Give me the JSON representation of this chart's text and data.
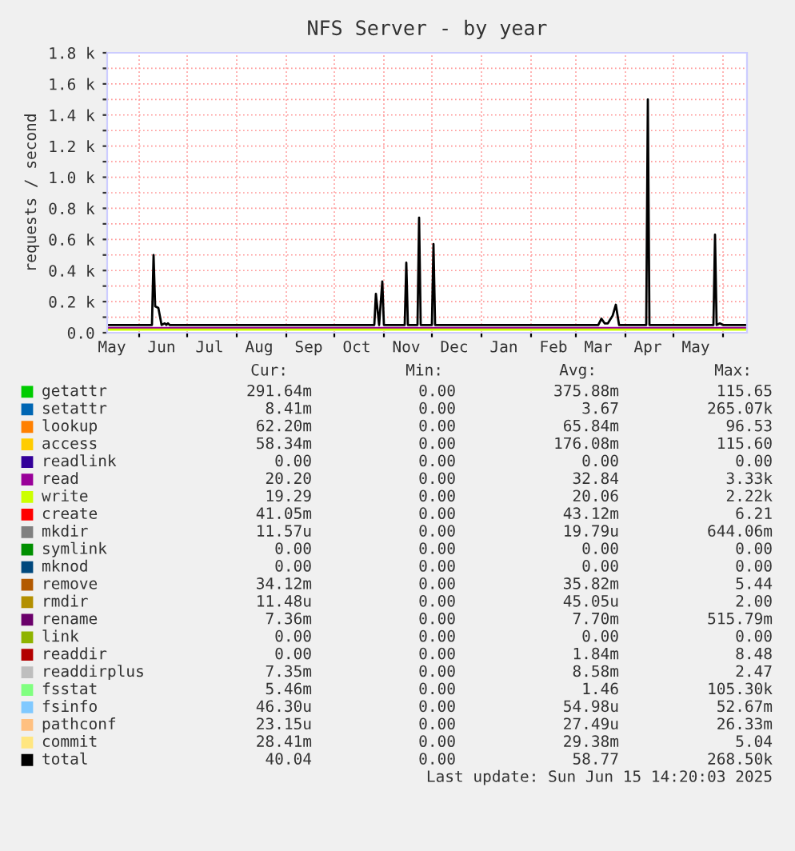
{
  "chart_data": {
    "type": "line",
    "title": "NFS Server - by year",
    "ylabel": "requests / second",
    "xlim": [
      "2024-05-12",
      "2025-06-16"
    ],
    "xticks": [
      {
        "value": "2024-05-15",
        "label": "May"
      },
      {
        "value": "2024-06-01",
        "label": null
      },
      {
        "value": "2024-06-15",
        "label": "Jun"
      },
      {
        "value": "2024-07-01",
        "label": null
      },
      {
        "value": "2024-07-15",
        "label": "Jul"
      },
      {
        "value": "2024-08-01",
        "label": null
      },
      {
        "value": "2024-08-15",
        "label": "Aug"
      },
      {
        "value": "2024-09-01",
        "label": null
      },
      {
        "value": "2024-09-15",
        "label": "Sep"
      },
      {
        "value": "2024-10-01",
        "label": null
      },
      {
        "value": "2024-10-15",
        "label": "Oct"
      },
      {
        "value": "2024-11-01",
        "label": null
      },
      {
        "value": "2024-11-15",
        "label": "Nov"
      },
      {
        "value": "2024-12-01",
        "label": null
      },
      {
        "value": "2024-12-15",
        "label": "Dec"
      },
      {
        "value": "2025-01-01",
        "label": null
      },
      {
        "value": "2025-01-15",
        "label": "Jan"
      },
      {
        "value": "2025-02-01",
        "label": null
      },
      {
        "value": "2025-02-15",
        "label": "Feb"
      },
      {
        "value": "2025-03-01",
        "label": null
      },
      {
        "value": "2025-03-15",
        "label": "Mar"
      },
      {
        "value": "2025-04-01",
        "label": null
      },
      {
        "value": "2025-04-15",
        "label": "Apr"
      },
      {
        "value": "2025-05-01",
        "label": null
      },
      {
        "value": "2025-05-15",
        "label": "May"
      },
      {
        "value": "2025-06-01",
        "label": null
      }
    ],
    "ylim": [
      0,
      1800
    ],
    "yticks": [
      {
        "value": 0,
        "label": "0.0"
      },
      {
        "value": 100,
        "label": null
      },
      {
        "value": 200,
        "label": "0.2 k"
      },
      {
        "value": 300,
        "label": null
      },
      {
        "value": 400,
        "label": "0.4 k"
      },
      {
        "value": 500,
        "label": null
      },
      {
        "value": 600,
        "label": "0.6 k"
      },
      {
        "value": 700,
        "label": null
      },
      {
        "value": 800,
        "label": "0.8 k"
      },
      {
        "value": 900,
        "label": null
      },
      {
        "value": 1000,
        "label": "1.0 k"
      },
      {
        "value": 1100,
        "label": null
      },
      {
        "value": 1200,
        "label": "1.2 k"
      },
      {
        "value": 1300,
        "label": null
      },
      {
        "value": 1400,
        "label": "1.4 k"
      },
      {
        "value": 1500,
        "label": null
      },
      {
        "value": 1600,
        "label": "1.6 k"
      },
      {
        "value": 1700,
        "label": null
      },
      {
        "value": 1800,
        "label": "1.8 k"
      }
    ],
    "grid": true,
    "legend": "bottom",
    "series": [
      {
        "name": "getattr",
        "color": "#00cc00",
        "values": [
          null,
          null
        ]
      },
      {
        "name": "setattr",
        "color": "#0066b3",
        "values": [
          null,
          null
        ]
      },
      {
        "name": "lookup",
        "color": "#ff8000",
        "values": [
          null,
          null
        ]
      },
      {
        "name": "access",
        "color": "#ffcc00",
        "values": [
          null,
          null
        ]
      },
      {
        "name": "readlink",
        "color": "#330099",
        "values": [
          null,
          null
        ]
      },
      {
        "name": "read",
        "color": "#990099",
        "x": [
          "2024-05-12",
          "2025-06-16"
        ],
        "values": [
          30,
          30
        ]
      },
      {
        "name": "write",
        "color": "#ccff00",
        "x": [
          "2024-05-12",
          "2025-06-16"
        ],
        "values": [
          20,
          20
        ]
      },
      {
        "name": "create",
        "color": "#ff0000",
        "values": [
          null,
          null
        ]
      },
      {
        "name": "mkdir",
        "color": "#808080",
        "values": [
          null,
          null
        ]
      },
      {
        "name": "symlink",
        "color": "#008f00",
        "values": [
          null,
          null
        ]
      },
      {
        "name": "mknod",
        "color": "#00487d",
        "values": [
          null,
          null
        ]
      },
      {
        "name": "remove",
        "color": "#b35a00",
        "values": [
          null,
          null
        ]
      },
      {
        "name": "rmdir",
        "color": "#b38f00",
        "values": [
          null,
          null
        ]
      },
      {
        "name": "rename",
        "color": "#6b006b",
        "values": [
          null,
          null
        ]
      },
      {
        "name": "link",
        "color": "#8fb300",
        "values": [
          null,
          null
        ]
      },
      {
        "name": "readdir",
        "color": "#b30000",
        "values": [
          null,
          null
        ]
      },
      {
        "name": "readdirplus",
        "color": "#bebebe",
        "values": [
          null,
          null
        ]
      },
      {
        "name": "fsstat",
        "color": "#80ff80",
        "values": [
          null,
          null
        ]
      },
      {
        "name": "fsinfo",
        "color": "#80c9ff",
        "values": [
          null,
          null
        ]
      },
      {
        "name": "pathconf",
        "color": "#ffc080",
        "values": [
          null,
          null
        ]
      },
      {
        "name": "commit",
        "color": "#ffe680",
        "values": [
          null,
          null
        ]
      },
      {
        "name": "total",
        "color": "#000000",
        "x": [
          "2024-05-12",
          "2024-06-09",
          "2024-06-10",
          "2024-06-11",
          "2024-06-13",
          "2024-06-15",
          "2024-06-17",
          "2024-06-18",
          "2024-06-19",
          "2024-06-20",
          "2024-06-21",
          "2024-10-26",
          "2024-10-27",
          "2024-10-29",
          "2024-10-31",
          "2024-11-01",
          "2024-11-14",
          "2024-11-15",
          "2024-11-16",
          "2024-11-22",
          "2024-11-23",
          "2024-11-24",
          "2024-12-01",
          "2024-12-02",
          "2024-12-03",
          "2025-03-15",
          "2025-03-17",
          "2025-03-19",
          "2025-03-21",
          "2025-03-24",
          "2025-03-26",
          "2025-03-28",
          "2025-03-30",
          "2025-04-14",
          "2025-04-15",
          "2025-04-16",
          "2025-05-26",
          "2025-05-27",
          "2025-05-28",
          "2025-05-30",
          "2025-06-01",
          "2025-06-15"
        ],
        "values": [
          50,
          50,
          500,
          170,
          160,
          50,
          60,
          50,
          60,
          50,
          50,
          50,
          250,
          50,
          330,
          50,
          50,
          450,
          50,
          50,
          740,
          50,
          50,
          570,
          50,
          50,
          90,
          60,
          60,
          110,
          180,
          50,
          50,
          50,
          1500,
          50,
          50,
          630,
          50,
          60,
          50,
          50
        ]
      }
    ],
    "annotations": [
      "Cur:",
      "Min:",
      "Avg:",
      "Max:",
      "291.64m",
      "0.00",
      "375.88m",
      "115.65",
      "8.41m",
      "0.00",
      "3.67",
      "265.07k",
      "62.20m",
      "0.00",
      "65.84m",
      "96.53",
      "58.34m",
      "0.00",
      "176.08m",
      "115.60",
      "0.00",
      "0.00",
      "0.00",
      "0.00",
      "20.20",
      "0.00",
      "32.84",
      "3.33k",
      "19.29",
      "0.00",
      "20.06",
      "2.22k",
      "41.05m",
      "0.00",
      "43.12m",
      "6.21",
      "11.57u",
      "0.00",
      "19.79u",
      "644.06m",
      "0.00",
      "0.00",
      "0.00",
      "0.00",
      "0.00",
      "0.00",
      "0.00",
      "0.00",
      "34.12m",
      "0.00",
      "35.82m",
      "5.44",
      "11.48u",
      "0.00",
      "45.05u",
      "2.00",
      "7.36m",
      "0.00",
      "7.70m",
      "515.79m",
      "0.00",
      "0.00",
      "0.00",
      "0.00",
      "0.00",
      "0.00",
      "1.84m",
      "8.48",
      "7.35m",
      "0.00",
      "8.58m",
      "2.47",
      "5.46m",
      "0.00",
      "1.46",
      "105.30k",
      "46.30u",
      "0.00",
      "54.98u",
      "52.67m",
      "23.15u",
      "0.00",
      "27.49u",
      "26.33m",
      "28.41m",
      "0.00",
      "29.38m",
      "5.04",
      "40.04",
      "0.00",
      "58.77",
      "268.50k",
      "Last update: Sun Jun 15 14:20:03 2025"
    ]
  }
}
